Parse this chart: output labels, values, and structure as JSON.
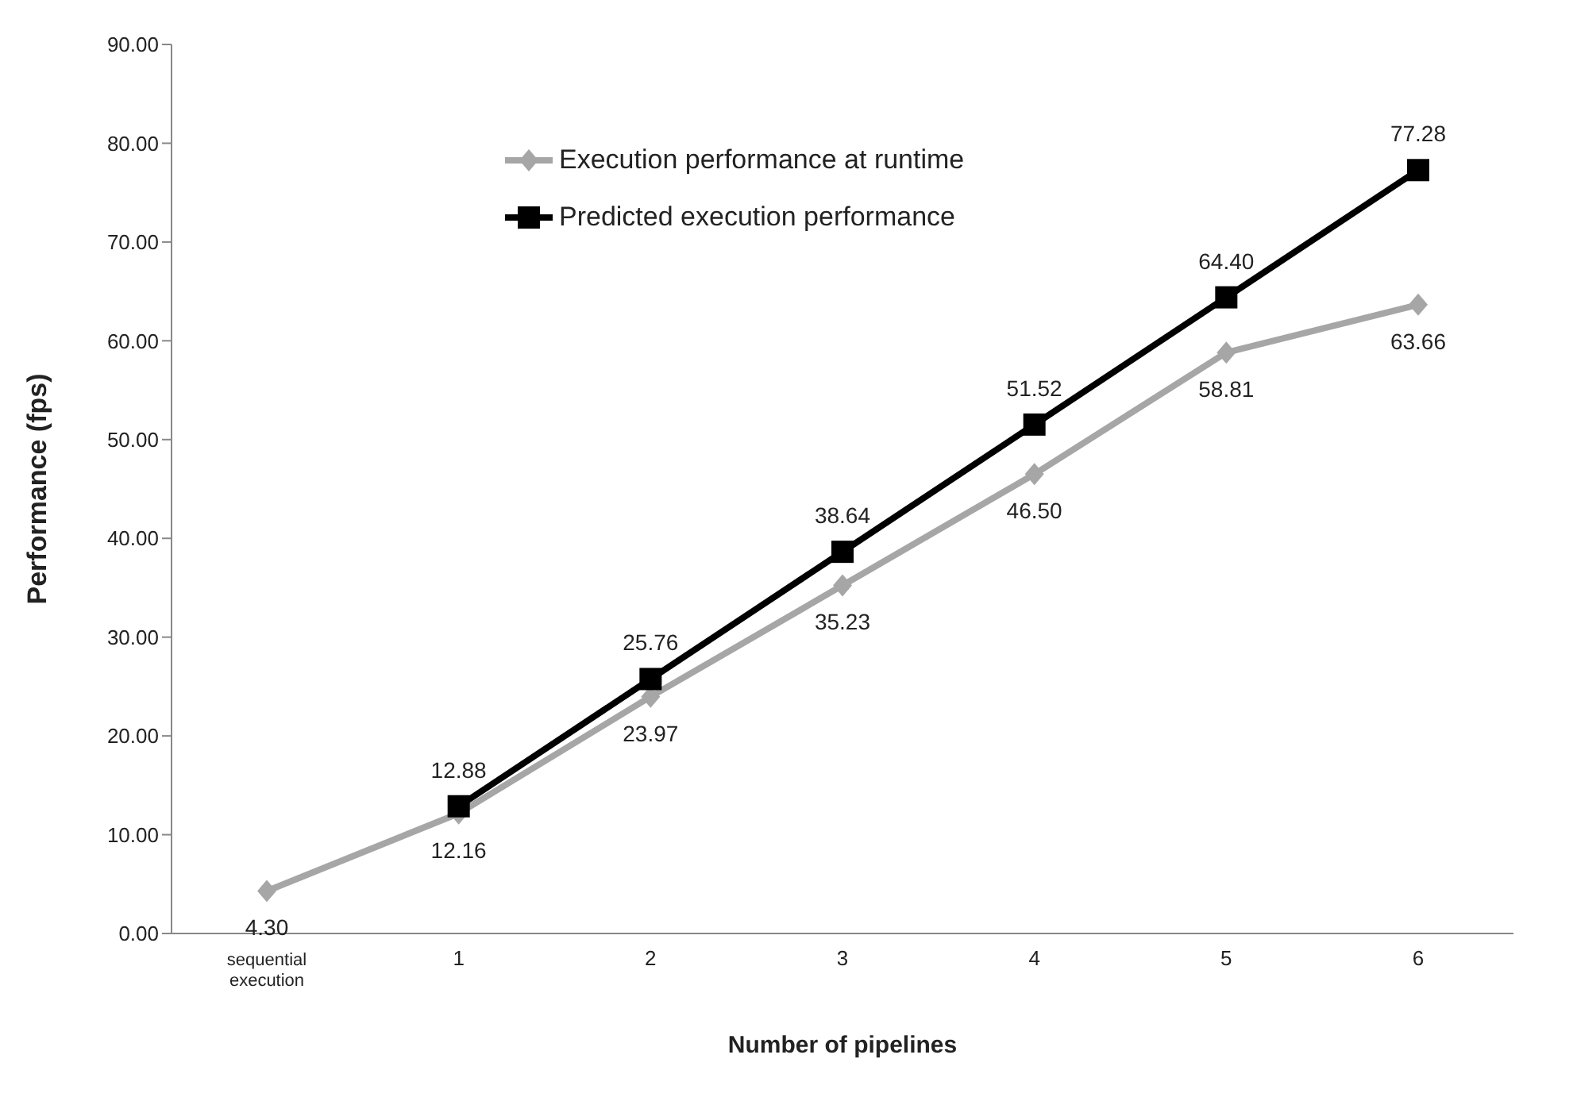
{
  "chart_data": {
    "type": "line",
    "xlabel": "Number of pipelines",
    "ylabel": "Performance (fps)",
    "categories": [
      "sequential execution",
      "1",
      "2",
      "3",
      "4",
      "5",
      "6"
    ],
    "series": [
      {
        "name": "Execution performance at runtime",
        "color": "#a6a6a6",
        "marker": "diamond",
        "values": [
          4.3,
          12.16,
          23.97,
          35.23,
          46.5,
          58.81,
          63.66
        ],
        "value_labels": [
          "4.30",
          "12.16",
          "23.97",
          "35.23",
          "46.50",
          "58.81",
          "63.66"
        ]
      },
      {
        "name": "Predicted execution performance",
        "color": "#000000",
        "marker": "square",
        "values": [
          null,
          12.88,
          25.76,
          38.64,
          51.52,
          64.4,
          77.28
        ],
        "value_labels": [
          null,
          "12.88",
          "25.76",
          "38.64",
          "51.52",
          "64.40",
          "77.28"
        ]
      }
    ],
    "ylim": [
      0,
      90
    ],
    "yticks": [
      {
        "value": 0,
        "label": "0.00"
      },
      {
        "value": 10,
        "label": "10.00"
      },
      {
        "value": 20,
        "label": "20.00"
      },
      {
        "value": 30,
        "label": "30.00"
      },
      {
        "value": 40,
        "label": "40.00"
      },
      {
        "value": 50,
        "label": "50.00"
      },
      {
        "value": 60,
        "label": "60.00"
      },
      {
        "value": 70,
        "label": "70.00"
      },
      {
        "value": 80,
        "label": "80.00"
      },
      {
        "value": 90,
        "label": "90.00"
      }
    ],
    "grid": false,
    "legend": "top"
  }
}
